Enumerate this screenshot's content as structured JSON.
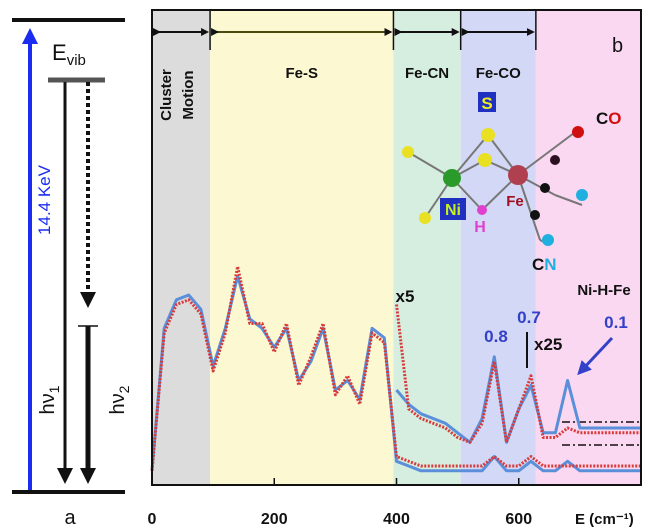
{
  "chart_data": {
    "type": "line",
    "panel_label": "b",
    "x_label": "E (cm⁻¹)",
    "xlim": [
      0,
      800
    ],
    "xticks": [
      0,
      200,
      400,
      600
    ],
    "ylim": [
      0,
      100
    ],
    "x": [
      0,
      20,
      40,
      60,
      80,
      100,
      120,
      140,
      160,
      180,
      200,
      220,
      240,
      260,
      280,
      300,
      320,
      340,
      360,
      380,
      400,
      420,
      440,
      460,
      480,
      500,
      520,
      540,
      560,
      580,
      600,
      620,
      640,
      660,
      680,
      700,
      720,
      740,
      760,
      780,
      800
    ],
    "series": [
      {
        "color": "#5b8fd9",
        "style": "solid",
        "values": [
          3,
          33,
          39,
          40,
          37,
          25,
          33,
          44,
          35,
          33,
          29,
          33,
          22,
          26,
          33,
          20,
          22,
          18,
          33,
          31,
          5,
          4,
          3,
          3,
          3,
          3,
          3,
          3,
          6,
          3,
          3,
          5,
          3,
          3,
          5,
          3,
          3,
          3,
          3,
          3,
          3
        ]
      },
      {
        "color": "#d93a3a",
        "style": "dotted",
        "values": [
          3,
          32,
          38,
          39,
          36,
          24,
          32,
          46,
          34,
          34,
          28,
          34,
          21,
          27,
          34,
          19,
          23,
          17,
          32,
          30,
          6,
          5,
          4,
          4,
          4,
          4,
          4,
          4,
          6,
          4,
          4,
          6,
          4,
          4,
          4,
          4,
          4,
          4,
          4,
          4,
          4
        ]
      },
      {
        "color": "#5b8fd9",
        "style": "solid",
        "values": [
          null,
          null,
          null,
          null,
          null,
          null,
          null,
          null,
          null,
          null,
          null,
          null,
          null,
          null,
          null,
          null,
          null,
          null,
          null,
          null,
          20,
          17,
          15,
          14,
          13,
          11,
          9,
          14,
          27,
          9,
          16,
          21,
          11,
          11,
          22,
          12,
          12,
          12,
          12,
          12,
          12
        ]
      },
      {
        "color": "#d93a3a",
        "style": "dotted",
        "values": [
          null,
          null,
          null,
          null,
          null,
          null,
          null,
          null,
          null,
          null,
          null,
          null,
          null,
          null,
          null,
          null,
          null,
          null,
          null,
          null,
          38,
          16,
          14,
          13,
          12,
          10,
          9,
          13,
          26,
          9,
          16,
          23,
          10,
          10,
          12,
          11,
          11,
          11,
          11,
          11,
          11
        ]
      }
    ],
    "regions": [
      {
        "label": [
          "Cluster",
          "Motion"
        ],
        "range": [
          0,
          95
        ],
        "color": "#dcdcdc"
      },
      {
        "label": [
          "Fe-S"
        ],
        "range": [
          95,
          395
        ],
        "color": "#fbf8d2"
      },
      {
        "label": [
          "Fe-CN"
        ],
        "range": [
          395,
          505
        ],
        "color": "#d6eedf"
      },
      {
        "label": [
          "Fe-CO"
        ],
        "range": [
          505,
          628
        ],
        "color": "#d2d8f6"
      },
      {
        "label": [],
        "range": [
          628,
          800
        ],
        "color": "#fad8f1"
      }
    ],
    "annotations": [
      {
        "text": "x5",
        "color": "#111111"
      },
      {
        "text": "0.8",
        "color": "#3340c8"
      },
      {
        "text": "0.7",
        "color": "#3340c8"
      },
      {
        "text": "x25",
        "color": "#111111"
      },
      {
        "text": "0.1",
        "color": "#3340c8"
      },
      {
        "text": "Ni-H-Fe",
        "color": "#111111"
      }
    ],
    "molecule": {
      "S": "S",
      "Ni": "Ni",
      "H": "H",
      "Fe": "Fe",
      "CO": [
        "C",
        "O"
      ],
      "CN": [
        "C",
        "N"
      ]
    },
    "panel_a": {
      "label": "a",
      "energy": "E",
      "energy_sub": "vib",
      "excitation": "14.4 KeV",
      "emission_1": "hν",
      "emission_1_sub": "1",
      "emission_2": "hν",
      "emission_2_sub": "2"
    }
  }
}
